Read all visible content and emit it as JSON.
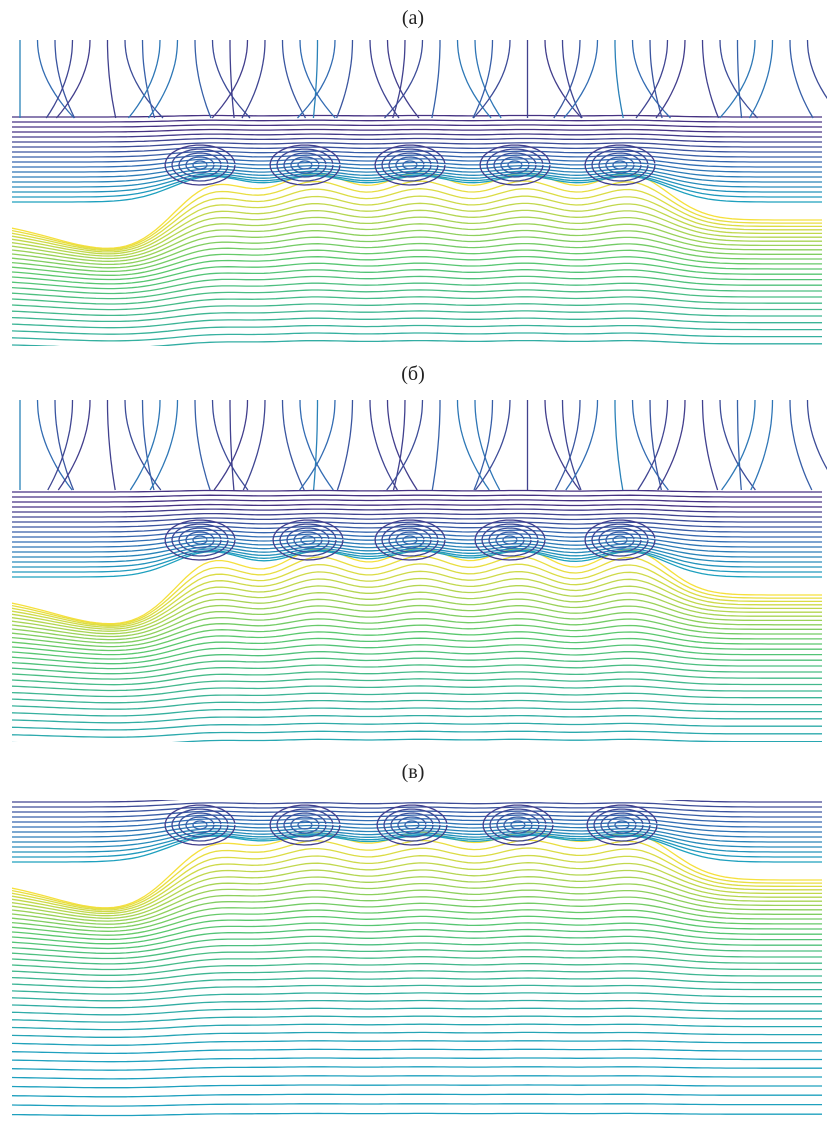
{
  "panels": [
    {
      "label": "(а)"
    },
    {
      "label": "(б)"
    },
    {
      "label": "(в)"
    }
  ]
}
